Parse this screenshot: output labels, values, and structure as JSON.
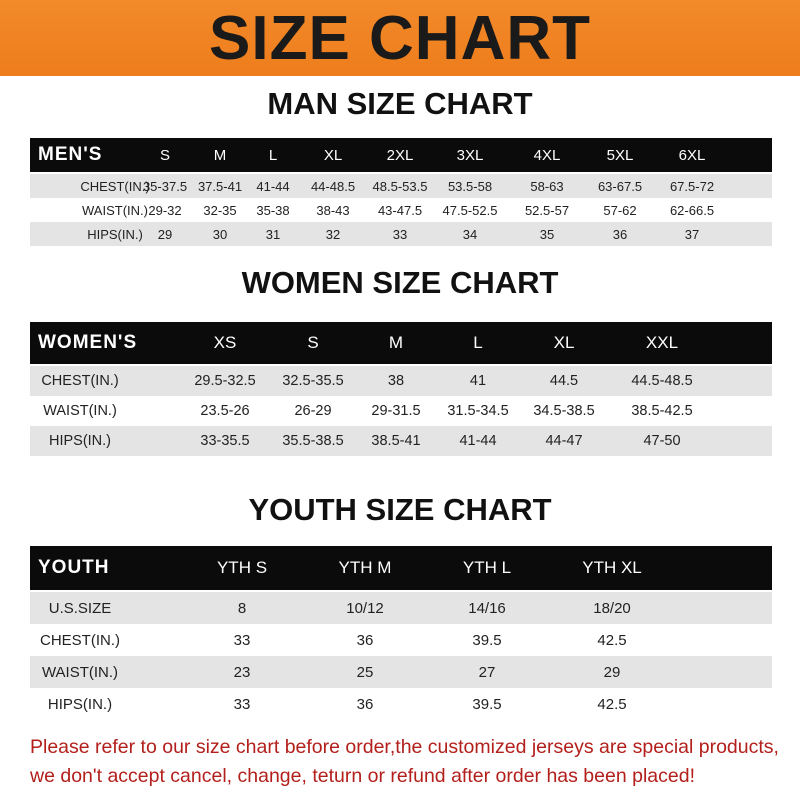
{
  "title": "SIZE CHART",
  "men": {
    "title": "MAN SIZE CHART",
    "header": [
      "MEN'S",
      "S",
      "M",
      "L",
      "XL",
      "2XL",
      "3XL",
      "4XL",
      "5XL",
      "6XL"
    ],
    "rows": [
      [
        "CHEST(IN.)",
        "35-37.5",
        "37.5-41",
        "41-44",
        "44-48.5",
        "48.5-53.5",
        "53.5-58",
        "58-63",
        "63-67.5",
        "67.5-72"
      ],
      [
        "WAIST(IN.)",
        "29-32",
        "32-35",
        "35-38",
        "38-43",
        "43-47.5",
        "47.5-52.5",
        "52.5-57",
        "57-62",
        "62-66.5"
      ],
      [
        "HIPS(IN.)",
        "29",
        "30",
        "31",
        "32",
        "33",
        "34",
        "35",
        "36",
        "37"
      ]
    ]
  },
  "women": {
    "title": "WOMEN SIZE CHART",
    "header": [
      "WOMEN'S",
      "XS",
      "S",
      "M",
      "L",
      "XL",
      "XXL"
    ],
    "rows": [
      [
        "CHEST(IN.)",
        "29.5-32.5",
        "32.5-35.5",
        "38",
        "41",
        "44.5",
        "44.5-48.5"
      ],
      [
        "WAIST(IN.)",
        "23.5-26",
        "26-29",
        "29-31.5",
        "31.5-34.5",
        "34.5-38.5",
        "38.5-42.5"
      ],
      [
        "HIPS(IN.)",
        "33-35.5",
        "35.5-38.5",
        "38.5-41",
        "41-44",
        "44-47",
        "47-50"
      ]
    ]
  },
  "youth": {
    "title": "YOUTH SIZE CHART",
    "header": [
      "YOUTH",
      "YTH S",
      "YTH M",
      "YTH L",
      "YTH XL"
    ],
    "rows": [
      [
        "U.S.SIZE",
        "8",
        "10/12",
        "14/16",
        "18/20"
      ],
      [
        "CHEST(IN.)",
        "33",
        "36",
        "39.5",
        "42.5"
      ],
      [
        "WAIST(IN.)",
        "23",
        "25",
        "27",
        "29"
      ],
      [
        "HIPS(IN.)",
        "33",
        "36",
        "39.5",
        "42.5"
      ]
    ]
  },
  "footer": {
    "line1": "Please refer to our size chart before order,the customized jerseys are special products,",
    "line2": "we don't accept cancel, change, teturn or refund after order has been placed!"
  },
  "colors": {
    "banner": "#ee7d1c",
    "header_row": "#0b0b0b",
    "stripe": "#e4e4e4",
    "notice": "#b3201c"
  }
}
